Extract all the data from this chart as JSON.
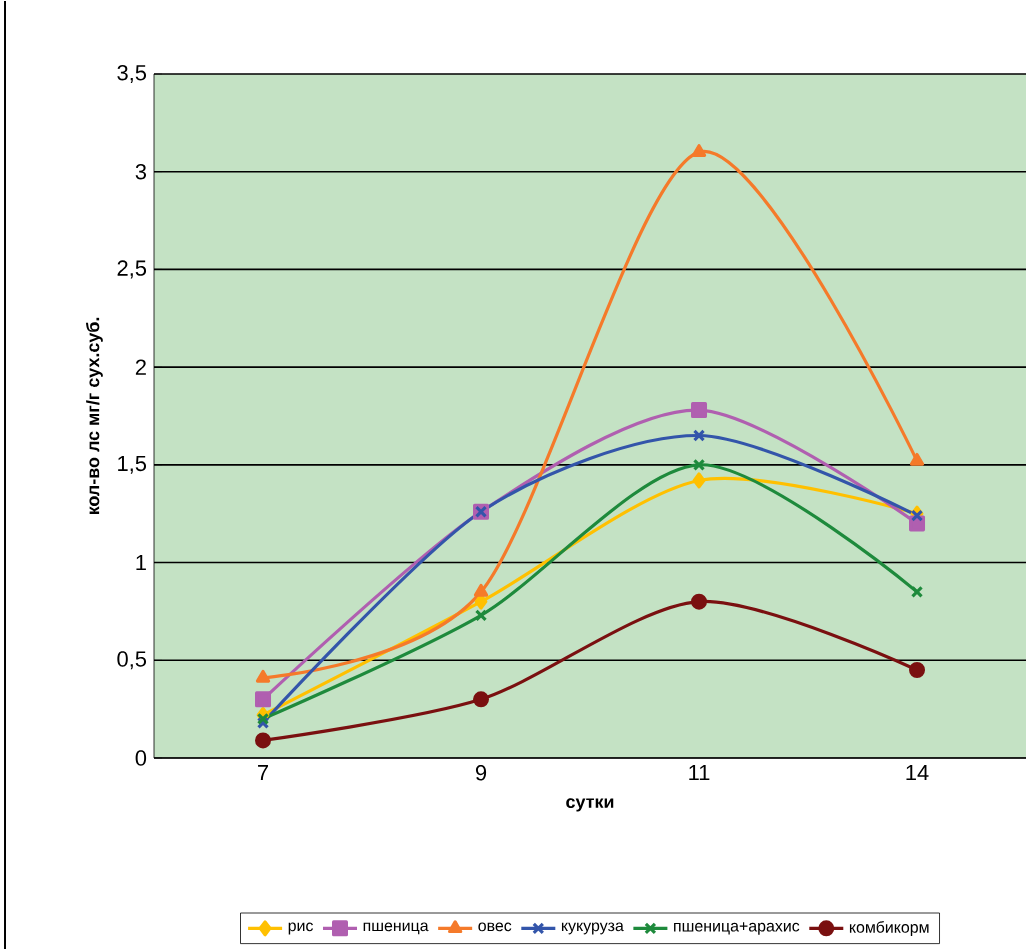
{
  "chart_data": {
    "type": "line",
    "xlabel": "сутки",
    "ylabel": "кол-во лс мг/г сух.суб.",
    "categories": [
      "7",
      "9",
      "11",
      "14"
    ],
    "series": [
      {
        "name": "рис",
        "color": "#ffc000",
        "marker": "diamond",
        "values": [
          0.22,
          0.8,
          1.42,
          1.25
        ]
      },
      {
        "name": "пшеница",
        "color": "#b05fb0",
        "marker": "square",
        "values": [
          0.3,
          1.26,
          1.78,
          1.2
        ]
      },
      {
        "name": "овес",
        "color": "#f57a2a",
        "marker": "triangle",
        "values": [
          0.41,
          0.85,
          3.1,
          1.52
        ]
      },
      {
        "name": "кукуруза",
        "color": "#3355aa",
        "marker": "cross",
        "values": [
          0.18,
          1.26,
          1.65,
          1.24
        ]
      },
      {
        "name": "пшеница+арахис",
        "color": "#1e8a3c",
        "marker": "cross",
        "values": [
          0.2,
          0.73,
          1.5,
          0.85
        ]
      },
      {
        "name": "комбикорм",
        "color": "#7a1010",
        "marker": "circle",
        "values": [
          0.09,
          0.3,
          0.8,
          0.45
        ]
      }
    ],
    "ylim": [
      0,
      3.5
    ],
    "yticks": [
      0,
      {
        "value": 0.5,
        "label": "0,5"
      },
      1,
      {
        "value": 1.5,
        "label": "1,5"
      },
      2,
      {
        "value": 2.5,
        "label": "2,5"
      },
      3,
      {
        "value": 3.5,
        "label": "3,5"
      }
    ],
    "grid": "y",
    "legend": "bottom",
    "line_style": "solid"
  }
}
